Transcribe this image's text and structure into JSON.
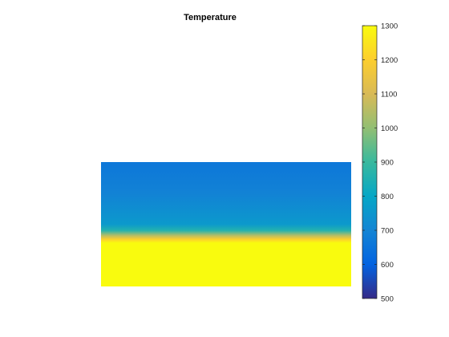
{
  "figure": {
    "background": "#ffffff"
  },
  "chart_data": {
    "type": "heatmap",
    "title": "Temperature",
    "xlabel": "",
    "ylabel": "",
    "axes_visible": false,
    "grid": false,
    "colormap": "parula",
    "colorbar": {
      "placement": "right",
      "limits": [
        500,
        1300
      ],
      "ticks": [
        500,
        600,
        700,
        800,
        900,
        1000,
        1100,
        1200,
        1300
      ],
      "tick_labels": [
        "500",
        "600",
        "700",
        "800",
        "900",
        "1000",
        "1100",
        "1200",
        "1300"
      ],
      "colors": [
        "#352a87",
        "#0363e1",
        "#1485d4",
        "#06a7c6",
        "#38b99e",
        "#92bf73",
        "#d9ba56",
        "#fcce2e",
        "#f9fb0e"
      ]
    },
    "field": {
      "description_of_axis": "temperature varies with depth; uniform horizontally",
      "profile_from_top": [
        {
          "depth_fraction": 0.0,
          "value": 660
        },
        {
          "depth_fraction": 0.25,
          "value": 690
        },
        {
          "depth_fraction": 0.5,
          "value": 760
        },
        {
          "depth_fraction": 0.55,
          "value": 860
        },
        {
          "depth_fraction": 0.59,
          "value": 1050
        },
        {
          "depth_fraction": 0.62,
          "value": 1200
        },
        {
          "depth_fraction": 0.65,
          "value": 1300
        },
        {
          "depth_fraction": 1.0,
          "value": 1300
        }
      ]
    }
  }
}
